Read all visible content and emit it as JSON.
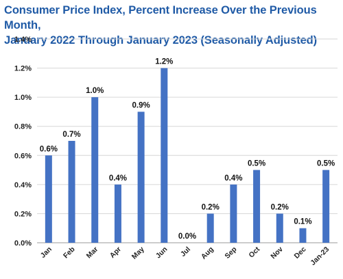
{
  "title_line1": "Consumer Price Index, Percent Increase Over the Previous Month,",
  "title_line2": "January 2022 Through January 2023 (Seasonally Adjusted)",
  "colors": {
    "bar": "#4472c4",
    "grid": "#d6d6d6",
    "title": "#1f5aa6"
  },
  "chart_data": {
    "type": "bar",
    "title": "Consumer Price Index, Percent Increase Over the Previous Month, January 2022 Through January 2023 (Seasonally Adjusted)",
    "categories": [
      "Jan",
      "Feb",
      "Mar",
      "Apr",
      "May",
      "Jun",
      "Jul",
      "Aug",
      "Sep",
      "Oct",
      "Nov",
      "Dec",
      "Jan-23"
    ],
    "values": [
      0.6,
      0.7,
      1.0,
      0.4,
      0.9,
      1.2,
      0.0,
      0.2,
      0.4,
      0.5,
      0.2,
      0.1,
      0.5
    ],
    "data_labels": [
      "0.6%",
      "0.7%",
      "1.0%",
      "0.4%",
      "0.9%",
      "1.2%",
      "0.0%",
      "0.2%",
      "0.4%",
      "0.5%",
      "0.2%",
      "0.1%",
      "0.5%"
    ],
    "yticks": [
      0,
      0.2,
      0.4,
      0.6,
      0.8,
      1.0,
      1.2,
      1.4
    ],
    "ytick_labels": [
      "0.0%",
      "0.2%",
      "0.4%",
      "0.6%",
      "0.8%",
      "1.0%",
      "1.2%",
      "1.4%"
    ],
    "ylim": [
      0,
      1.4
    ],
    "xlabel": "",
    "ylabel": "",
    "grid": true,
    "legend": "none"
  }
}
